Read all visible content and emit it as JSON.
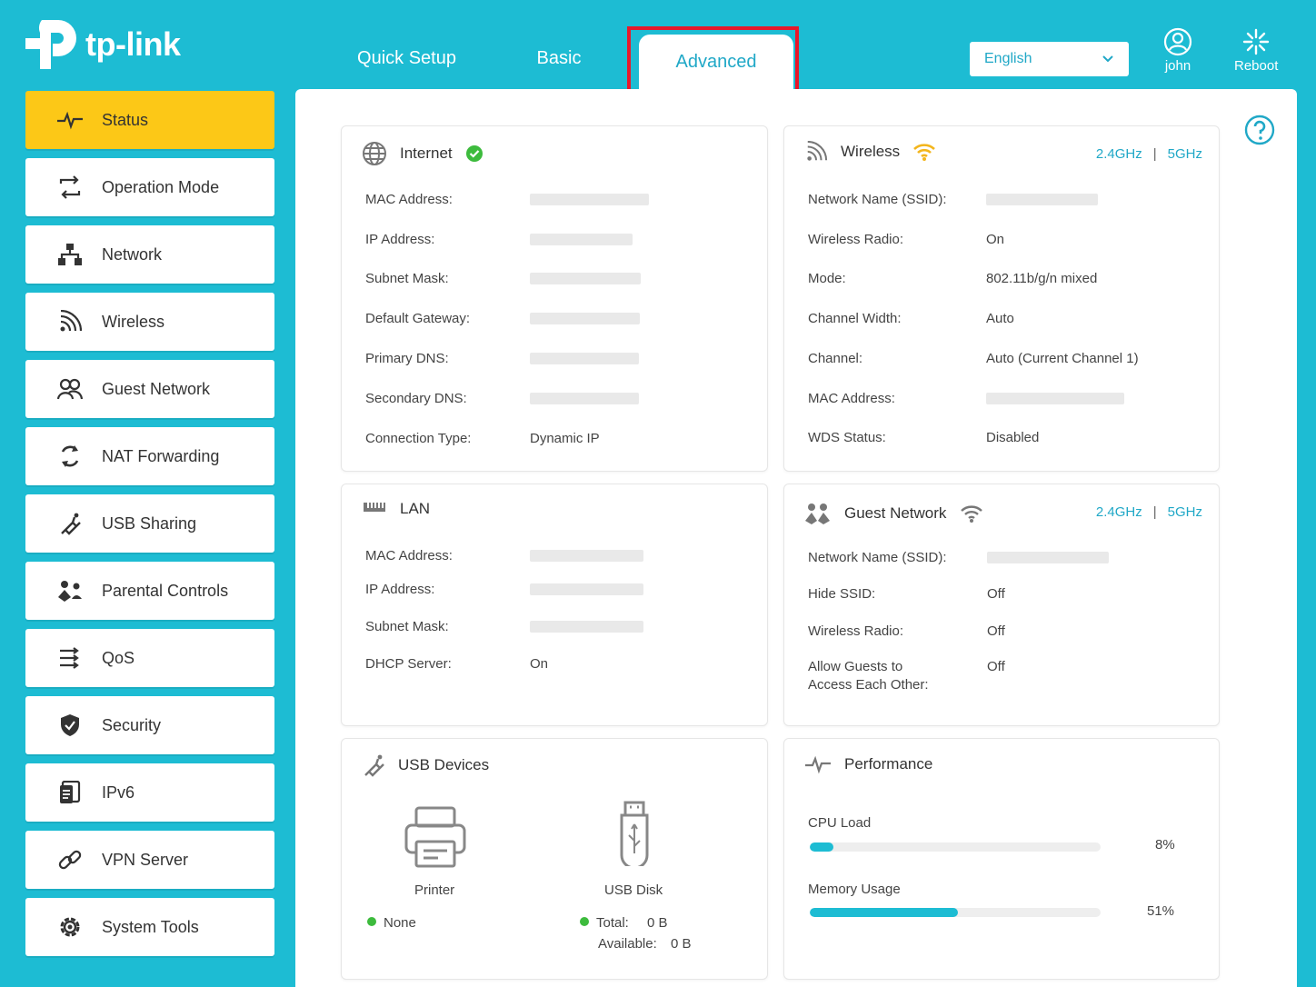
{
  "header": {
    "brand": "tp-link",
    "tabs": [
      {
        "label": "Quick Setup"
      },
      {
        "label": "Basic"
      },
      {
        "label": "Advanced"
      }
    ],
    "language": "English",
    "user": "john",
    "reboot": "Reboot"
  },
  "sidebar": {
    "items": [
      {
        "label": "Status",
        "icon": "pulse-icon"
      },
      {
        "label": "Operation Mode",
        "icon": "swap-icon"
      },
      {
        "label": "Network",
        "icon": "network-icon"
      },
      {
        "label": "Wireless",
        "icon": "wifi-signal-icon"
      },
      {
        "label": "Guest Network",
        "icon": "guests-icon"
      },
      {
        "label": "NAT Forwarding",
        "icon": "refresh-icon"
      },
      {
        "label": "USB Sharing",
        "icon": "usb-icon"
      },
      {
        "label": "Parental Controls",
        "icon": "family-icon"
      },
      {
        "label": "QoS",
        "icon": "qos-icon"
      },
      {
        "label": "Security",
        "icon": "shield-icon"
      },
      {
        "label": "IPv6",
        "icon": "document-icon"
      },
      {
        "label": "VPN Server",
        "icon": "link-icon"
      },
      {
        "label": "System Tools",
        "icon": "gear-icon"
      }
    ]
  },
  "internet": {
    "title": "Internet",
    "rows": [
      {
        "label": "MAC Address:",
        "value": ""
      },
      {
        "label": "IP Address:",
        "value": ""
      },
      {
        "label": "Subnet Mask:",
        "value": ""
      },
      {
        "label": "Default Gateway:",
        "value": ""
      },
      {
        "label": "Primary DNS:",
        "value": ""
      },
      {
        "label": "Secondary DNS:",
        "value": ""
      },
      {
        "label": "Connection Type:",
        "value": "Dynamic IP"
      }
    ]
  },
  "wireless": {
    "title": "Wireless",
    "band_24": "2.4GHz",
    "band_5": "5GHz",
    "rows": [
      {
        "label": "Network Name (SSID):",
        "value": ""
      },
      {
        "label": "Wireless Radio:",
        "value": "On"
      },
      {
        "label": "Mode:",
        "value": "802.11b/g/n mixed"
      },
      {
        "label": "Channel Width:",
        "value": "Auto"
      },
      {
        "label": "Channel:",
        "value": "Auto (Current Channel 1)"
      },
      {
        "label": "MAC  Address:",
        "value": ""
      },
      {
        "label": "WDS Status:",
        "value": "Disabled"
      }
    ]
  },
  "lan": {
    "title": "LAN",
    "rows": [
      {
        "label": "MAC Address:",
        "value": ""
      },
      {
        "label": "IP Address:",
        "value": ""
      },
      {
        "label": "Subnet Mask:",
        "value": ""
      },
      {
        "label": "DHCP Server:",
        "value": "On"
      }
    ]
  },
  "guest": {
    "title": "Guest Network",
    "band_24": "2.4GHz",
    "band_5": "5GHz",
    "rows": [
      {
        "label": "Network Name (SSID):",
        "value": ""
      },
      {
        "label": "Hide SSID:",
        "value": "Off"
      },
      {
        "label": "Wireless Radio:",
        "value": "Off"
      },
      {
        "label": "Allow Guests to",
        "label2": "Access Each Other:",
        "value": "Off"
      }
    ]
  },
  "usb": {
    "title": "USB Devices",
    "printer_label": "Printer",
    "printer_status": "None",
    "disk_label": "USB Disk",
    "total_label": "Total:",
    "total_value": "0  B",
    "available_label": "Available:",
    "available_value": "0  B"
  },
  "performance": {
    "title": "Performance",
    "cpu_label": "CPU Load",
    "cpu_value": "8%",
    "cpu_fraction": 0.08,
    "mem_label": "Memory Usage",
    "mem_value": "51%",
    "mem_fraction": 0.51
  },
  "colors": {
    "accent": "#1dbcd3",
    "active_nav": "#fcc817",
    "link": "#20a8c7",
    "highlight": "#e8182b",
    "ok": "#3dbb3d"
  }
}
